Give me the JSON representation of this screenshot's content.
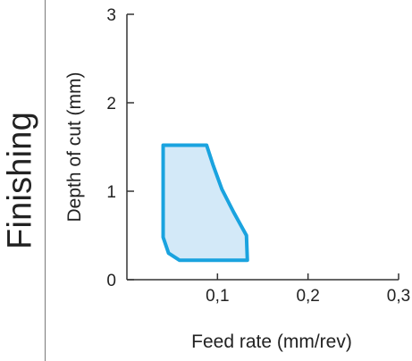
{
  "section_label": "Finishing",
  "chart_data": {
    "type": "area",
    "title": "",
    "xlabel": "Feed rate (mm/rev)",
    "ylabel": "Depth of cut (mm)",
    "xlim": [
      0,
      0.3
    ],
    "ylim": [
      0,
      3
    ],
    "x_ticks": [
      0.1,
      0.2,
      0.3
    ],
    "x_tick_labels": [
      "0,1",
      "0,2",
      "0,3"
    ],
    "y_ticks": [
      0,
      1,
      2,
      3
    ],
    "y_tick_labels": [
      "0",
      "1",
      "2",
      "3"
    ],
    "grid": false,
    "legend": "none",
    "region": {
      "name": "",
      "outline": [
        [
          0.04,
          1.52
        ],
        [
          0.088,
          1.52
        ],
        [
          0.095,
          1.3
        ],
        [
          0.105,
          1.02
        ],
        [
          0.118,
          0.76
        ],
        [
          0.132,
          0.5
        ],
        [
          0.133,
          0.22
        ],
        [
          0.058,
          0.22
        ],
        [
          0.046,
          0.3
        ],
        [
          0.04,
          0.48
        ],
        [
          0.04,
          1.52
        ]
      ]
    },
    "colors": {
      "outline": "#1aa3df",
      "fill": "#d3e9f8",
      "axes": "#333333"
    }
  }
}
